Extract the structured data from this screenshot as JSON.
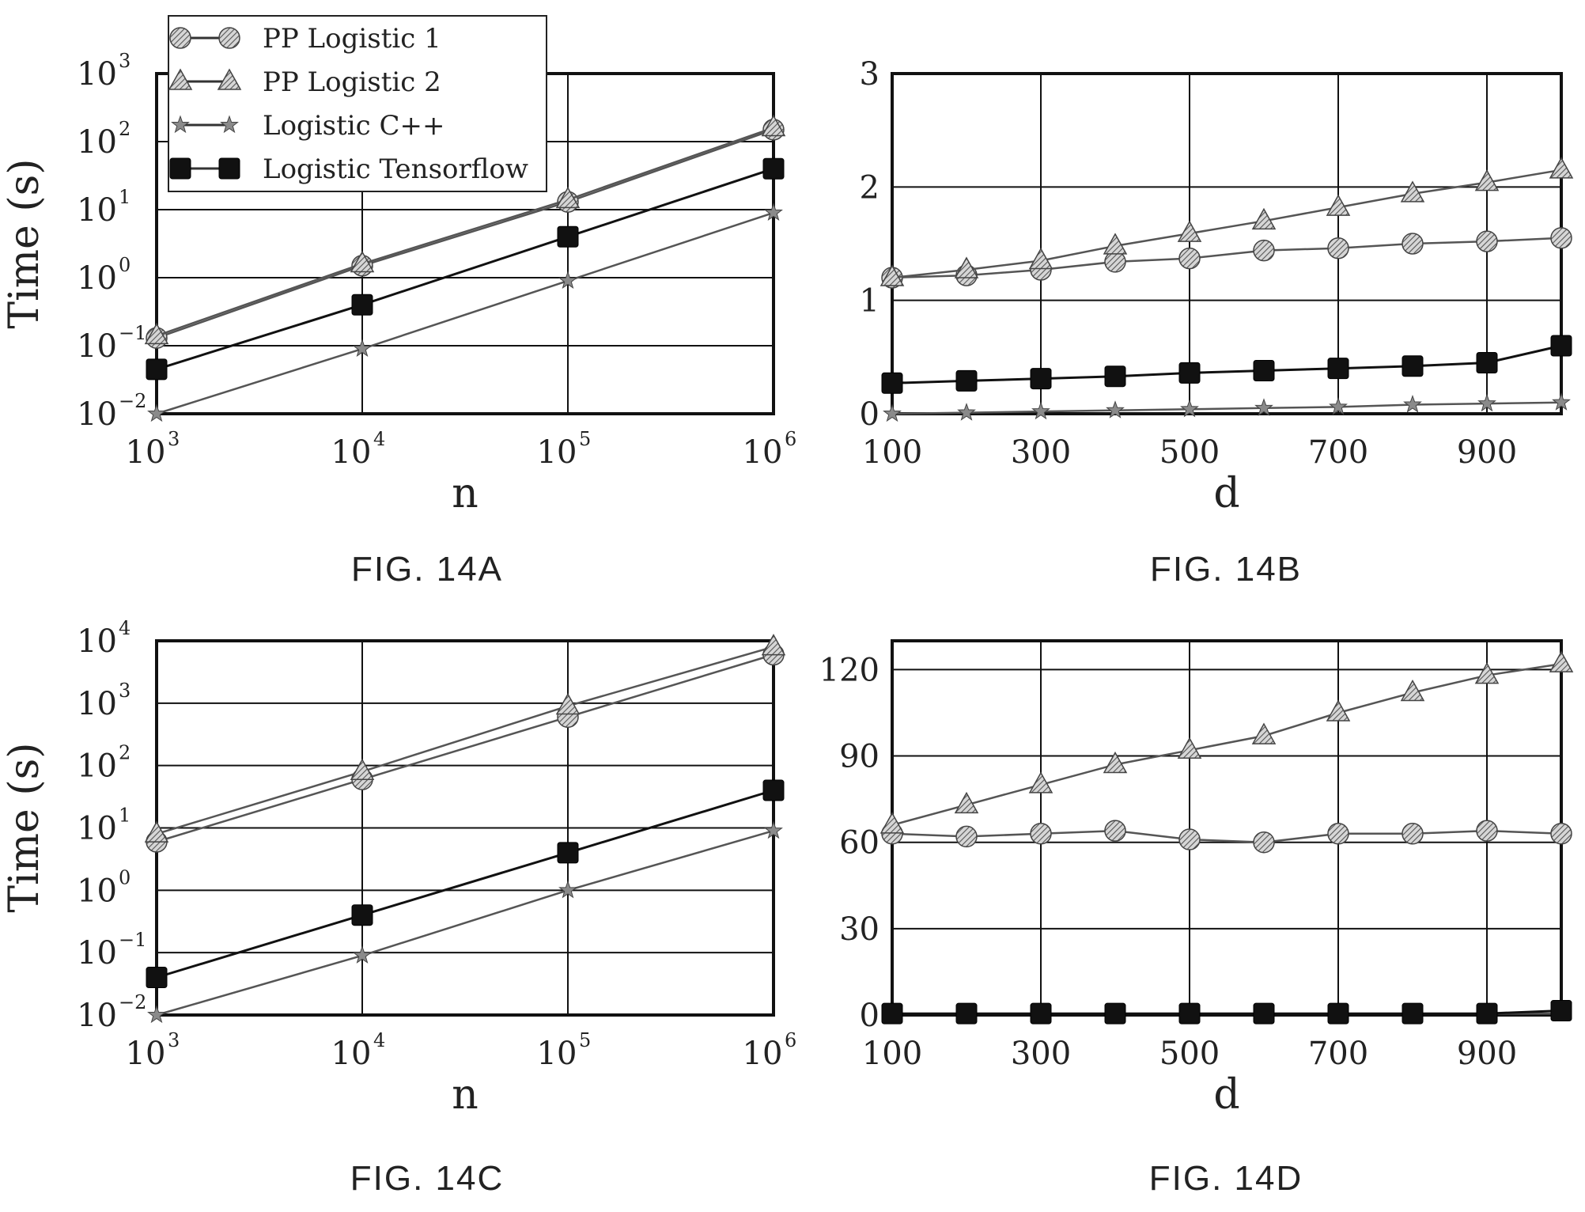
{
  "figure_captions": [
    "FIG. 14A",
    "FIG. 14B",
    "FIG. 14C",
    "FIG. 14D"
  ],
  "legend": [
    {
      "label": "PP Logistic 1",
      "marker": "circle-hatched"
    },
    {
      "label": "PP Logistic 2",
      "marker": "triangle-hatched"
    },
    {
      "label": "Logistic C++",
      "marker": "star-hatched"
    },
    {
      "label": "Logistic Tensorflow",
      "marker": "square-filled"
    }
  ],
  "colors": {
    "line": "#222222",
    "hatch": "#7a7a7a",
    "filled_marker": "#111111",
    "grid": "#111111"
  },
  "chart_data": [
    {
      "type": "line",
      "panel": "FIG. 14A",
      "xlabel": "n",
      "ylabel": "Time (s)",
      "xscale": "log",
      "yscale": "log",
      "xlim": [
        1000,
        1000000
      ],
      "ylim": [
        0.01,
        1000
      ],
      "xticks": [
        1000,
        10000,
        100000,
        1000000
      ],
      "yticks": [
        0.01,
        0.1,
        1,
        10,
        100,
        1000
      ],
      "xtick_labels": [
        {
          "base": "10",
          "exp": "3"
        },
        {
          "base": "10",
          "exp": "4"
        },
        {
          "base": "10",
          "exp": "5"
        },
        {
          "base": "10",
          "exp": "6"
        }
      ],
      "ytick_labels": [
        {
          "base": "10",
          "exp": "−2"
        },
        {
          "base": "10",
          "exp": "−1"
        },
        {
          "base": "10",
          "exp": "0"
        },
        {
          "base": "10",
          "exp": "1"
        },
        {
          "base": "10",
          "exp": "2"
        },
        {
          "base": "10",
          "exp": "3"
        }
      ],
      "grid": true,
      "legend_position": "top-left",
      "series": [
        {
          "name": "PP Logistic 1",
          "x": [
            1000,
            10000,
            100000,
            1000000
          ],
          "y": [
            0.13,
            1.5,
            13,
            150
          ]
        },
        {
          "name": "PP Logistic 2",
          "x": [
            1000,
            10000,
            100000,
            1000000
          ],
          "y": [
            0.14,
            1.6,
            14,
            160
          ]
        },
        {
          "name": "Logistic C++",
          "x": [
            1000,
            10000,
            100000,
            1000000
          ],
          "y": [
            0.01,
            0.09,
            0.9,
            9
          ]
        },
        {
          "name": "Logistic Tensorflow",
          "x": [
            1000,
            10000,
            100000,
            1000000
          ],
          "y": [
            0.045,
            0.4,
            4,
            40
          ]
        }
      ]
    },
    {
      "type": "line",
      "panel": "FIG. 14B",
      "xlabel": "d",
      "ylabel": "",
      "xscale": "linear",
      "yscale": "linear",
      "xlim": [
        100,
        1000
      ],
      "ylim": [
        0,
        3
      ],
      "xticks": [
        100,
        300,
        500,
        700,
        900
      ],
      "yticks": [
        0,
        1,
        2,
        3
      ],
      "xtick_labels": [
        "100",
        "300",
        "500",
        "700",
        "900"
      ],
      "ytick_labels": [
        "0",
        "1",
        "2",
        "3"
      ],
      "xgrid": [
        100,
        300,
        500,
        700,
        900
      ],
      "grid": true,
      "series": [
        {
          "name": "PP Logistic 1",
          "x": [
            100,
            200,
            300,
            400,
            500,
            600,
            700,
            800,
            900,
            1000
          ],
          "y": [
            1.2,
            1.22,
            1.27,
            1.34,
            1.37,
            1.44,
            1.46,
            1.5,
            1.52,
            1.55
          ]
        },
        {
          "name": "PP Logistic 2",
          "x": [
            100,
            200,
            300,
            400,
            500,
            600,
            700,
            800,
            900,
            1000
          ],
          "y": [
            1.2,
            1.27,
            1.35,
            1.48,
            1.59,
            1.7,
            1.82,
            1.94,
            2.04,
            2.15
          ]
        },
        {
          "name": "Logistic C++",
          "x": [
            100,
            200,
            300,
            400,
            500,
            600,
            700,
            800,
            900,
            1000
          ],
          "y": [
            0.0,
            0.01,
            0.02,
            0.03,
            0.04,
            0.05,
            0.06,
            0.08,
            0.09,
            0.1
          ]
        },
        {
          "name": "Logistic Tensorflow",
          "x": [
            100,
            200,
            300,
            400,
            500,
            600,
            700,
            800,
            900,
            1000
          ],
          "y": [
            0.27,
            0.29,
            0.31,
            0.33,
            0.36,
            0.38,
            0.4,
            0.42,
            0.45,
            0.6
          ]
        }
      ]
    },
    {
      "type": "line",
      "panel": "FIG. 14C",
      "xlabel": "n",
      "ylabel": "Time (s)",
      "xscale": "log",
      "yscale": "log",
      "xlim": [
        1000,
        1000000
      ],
      "ylim": [
        0.01,
        10000
      ],
      "xticks": [
        1000,
        10000,
        100000,
        1000000
      ],
      "yticks": [
        0.01,
        0.1,
        1,
        10,
        100,
        1000,
        10000
      ],
      "xtick_labels": [
        {
          "base": "10",
          "exp": "3"
        },
        {
          "base": "10",
          "exp": "4"
        },
        {
          "base": "10",
          "exp": "5"
        },
        {
          "base": "10",
          "exp": "6"
        }
      ],
      "ytick_labels": [
        {
          "base": "10",
          "exp": "−2"
        },
        {
          "base": "10",
          "exp": "−1"
        },
        {
          "base": "10",
          "exp": "0"
        },
        {
          "base": "10",
          "exp": "1"
        },
        {
          "base": "10",
          "exp": "2"
        },
        {
          "base": "10",
          "exp": "3"
        },
        {
          "base": "10",
          "exp": "4"
        }
      ],
      "grid": true,
      "series": [
        {
          "name": "PP Logistic 1",
          "x": [
            1000,
            10000,
            100000,
            1000000
          ],
          "y": [
            6,
            60,
            600,
            6000
          ]
        },
        {
          "name": "PP Logistic 2",
          "x": [
            1000,
            10000,
            100000,
            1000000
          ],
          "y": [
            8,
            80,
            900,
            8000
          ]
        },
        {
          "name": "Logistic C++",
          "x": [
            1000,
            10000,
            100000,
            1000000
          ],
          "y": [
            0.01,
            0.09,
            1,
            9
          ]
        },
        {
          "name": "Logistic Tensorflow",
          "x": [
            1000,
            10000,
            100000,
            1000000
          ],
          "y": [
            0.04,
            0.4,
            4,
            40
          ]
        }
      ]
    },
    {
      "type": "line",
      "panel": "FIG. 14D",
      "xlabel": "d",
      "ylabel": "",
      "xscale": "linear",
      "yscale": "linear",
      "xlim": [
        100,
        1000
      ],
      "ylim": [
        0,
        130
      ],
      "xticks": [
        100,
        300,
        500,
        700,
        900
      ],
      "yticks": [
        0,
        30,
        60,
        90,
        120
      ],
      "xtick_labels": [
        "100",
        "300",
        "500",
        "700",
        "900"
      ],
      "ytick_labels": [
        "0",
        "30",
        "60",
        "90",
        "120"
      ],
      "xgrid": [
        100,
        300,
        500,
        700,
        900
      ],
      "grid": true,
      "series": [
        {
          "name": "PP Logistic 1",
          "x": [
            100,
            200,
            300,
            400,
            500,
            600,
            700,
            800,
            900,
            1000
          ],
          "y": [
            63,
            62,
            63,
            64,
            61,
            60,
            63,
            63,
            64,
            63
          ]
        },
        {
          "name": "PP Logistic 2",
          "x": [
            100,
            200,
            300,
            400,
            500,
            600,
            700,
            800,
            900,
            1000
          ],
          "y": [
            66,
            73,
            80,
            87,
            92,
            97,
            105,
            112,
            118,
            122
          ]
        },
        {
          "name": "Logistic C++",
          "x": [
            100,
            200,
            300,
            400,
            500,
            600,
            700,
            800,
            900,
            1000
          ],
          "y": [
            0.5,
            0.5,
            0.5,
            0.5,
            0.5,
            0.5,
            0.5,
            0.5,
            0.5,
            0.5
          ]
        },
        {
          "name": "Logistic Tensorflow",
          "x": [
            100,
            200,
            300,
            400,
            500,
            600,
            700,
            800,
            900,
            1000
          ],
          "y": [
            0.5,
            0.5,
            0.5,
            0.5,
            0.5,
            0.5,
            0.5,
            0.5,
            0.5,
            1.5
          ]
        }
      ]
    }
  ]
}
